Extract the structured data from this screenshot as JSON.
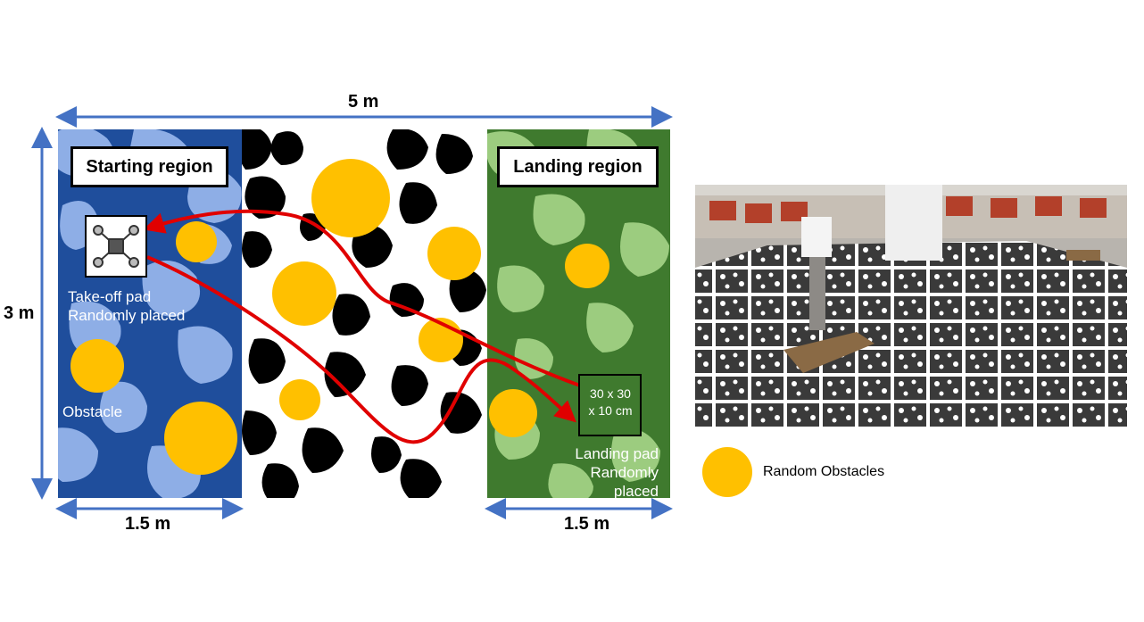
{
  "diagram": {
    "dimensions": {
      "width": "5 m",
      "height": "3 m",
      "left_zone": "1.5 m",
      "right_zone": "1.5 m"
    },
    "regions": {
      "start": "Starting region",
      "landing": "Landing region"
    },
    "labels": {
      "takeoff_line1": "Take-off pad",
      "takeoff_line2": "Randomly placed",
      "obstacle": "Obstacle",
      "pad_size_line1": "30 x 30",
      "pad_size_line2": "x 10 cm",
      "landing_line1": "Landing pad",
      "landing_line2": "Randomly placed"
    },
    "colors": {
      "start_bg": "#1f4e9c",
      "start_spots": "#8eaee6",
      "middle_bg": "#ffffff",
      "middle_spots": "#000000",
      "landing_bg": "#3f7a2e",
      "landing_spots": "#9ccc7f",
      "obstacle": "#ffc000",
      "path": "#e00000",
      "dimension_line": "#4472c4"
    }
  },
  "legend": {
    "label": "Random Obstacles",
    "color": "#ffc000"
  },
  "photo": {
    "icon": "photo-of-test-arena"
  }
}
